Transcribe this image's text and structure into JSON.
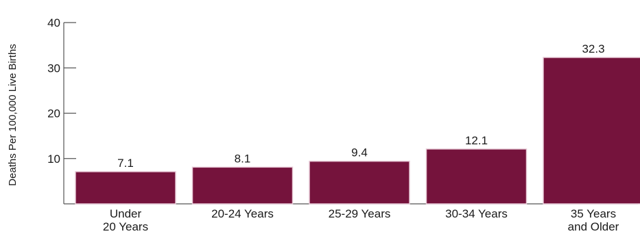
{
  "chart_data": {
    "type": "bar",
    "title": "",
    "xlabel": "",
    "ylabel": "Deaths Per 100,000 Live Births",
    "ylim": [
      0,
      40
    ],
    "yticks": [
      10,
      20,
      30,
      40
    ],
    "categories": [
      [
        "Under",
        "20 Years"
      ],
      [
        "20-24 Years"
      ],
      [
        "25-29 Years"
      ],
      [
        "30-34 Years"
      ],
      [
        "35 Years",
        "and Older"
      ]
    ],
    "values": [
      7.1,
      8.1,
      9.4,
      12.1,
      32.3
    ],
    "value_labels": [
      "7.1",
      "8.1",
      "9.4",
      "12.1",
      "32.3"
    ],
    "bar_color": "#75133c",
    "bar_edge_color": "#e7c9d6",
    "grid": false,
    "legend": "none"
  }
}
